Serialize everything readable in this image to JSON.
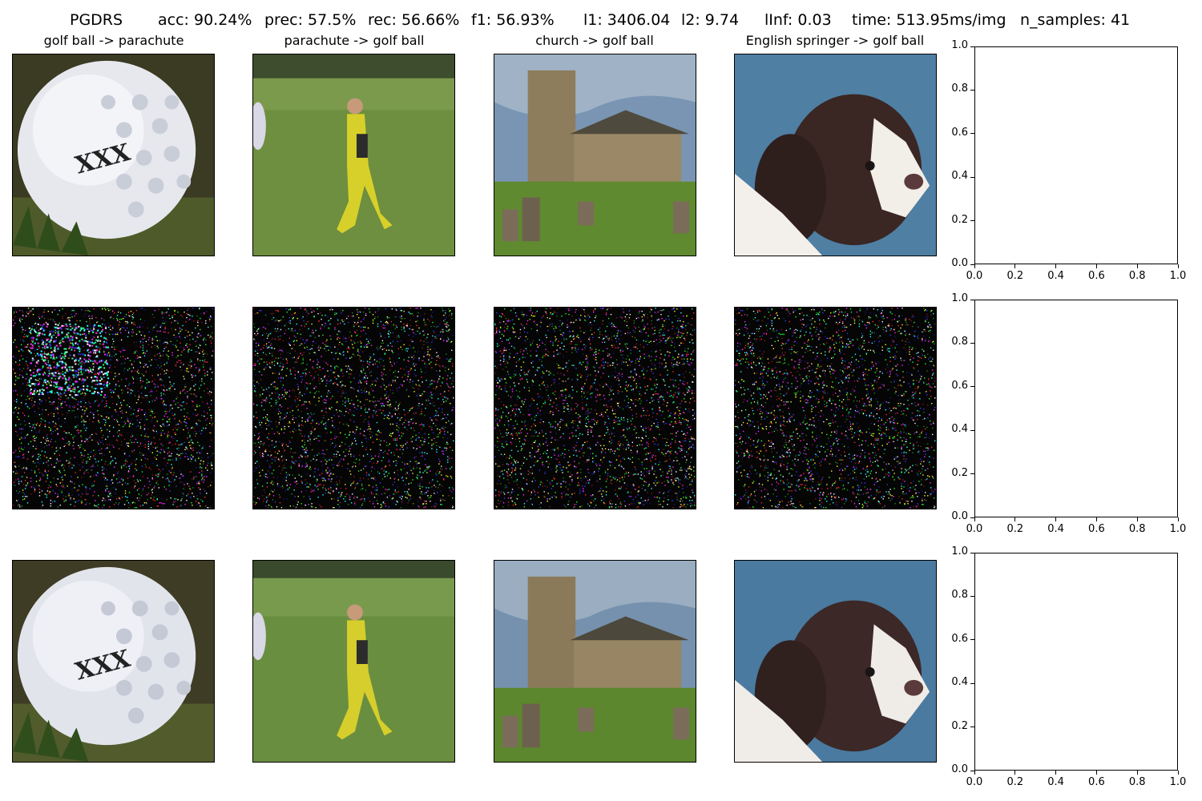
{
  "suptitle": {
    "method": "PGDRS",
    "acc": "acc: 90.24%",
    "prec": "prec: 57.5%",
    "rec": "rec: 56.66%",
    "f1": "f1: 56.93%",
    "l1": "l1: 3406.04",
    "l2": "l2: 9.74",
    "linf": "lInf: 0.03",
    "time": "time: 513.95ms/img",
    "n_samples": "n_samples: 41"
  },
  "columns": [
    {
      "title": "golf ball -> parachute",
      "image": "golf ball"
    },
    {
      "title": "parachute -> golf ball",
      "image": "person in yellow jumpsuit on grass field"
    },
    {
      "title": "church -> golf ball",
      "image": "stone church with graveyard"
    },
    {
      "title": "English springer -> golf ball",
      "image": "springer spaniel puppy"
    }
  ],
  "chart_data": [
    {
      "type": "scatter",
      "title": "",
      "xlabel": "",
      "ylabel": "",
      "xlim": [
        0.0,
        1.0
      ],
      "ylim": [
        0.0,
        1.0
      ],
      "xticks": [
        "0.0",
        "0.2",
        "0.4",
        "0.6",
        "0.8",
        "1.0"
      ],
      "yticks": [
        "0.0",
        "0.2",
        "0.4",
        "0.6",
        "0.8",
        "1.0"
      ],
      "series": []
    },
    {
      "type": "scatter",
      "title": "",
      "xlabel": "",
      "ylabel": "",
      "xlim": [
        0.0,
        1.0
      ],
      "ylim": [
        0.0,
        1.0
      ],
      "xticks": [
        "0.0",
        "0.2",
        "0.4",
        "0.6",
        "0.8",
        "1.0"
      ],
      "yticks": [
        "0.0",
        "0.2",
        "0.4",
        "0.6",
        "0.8",
        "1.0"
      ],
      "series": []
    },
    {
      "type": "scatter",
      "title": "",
      "xlabel": "",
      "ylabel": "",
      "xlim": [
        0.0,
        1.0
      ],
      "ylim": [
        0.0,
        1.0
      ],
      "xticks": [
        "0.0",
        "0.2",
        "0.4",
        "0.6",
        "0.8",
        "1.0"
      ],
      "yticks": [
        "0.0",
        "0.2",
        "0.4",
        "0.6",
        "0.8",
        "1.0"
      ],
      "series": []
    }
  ]
}
